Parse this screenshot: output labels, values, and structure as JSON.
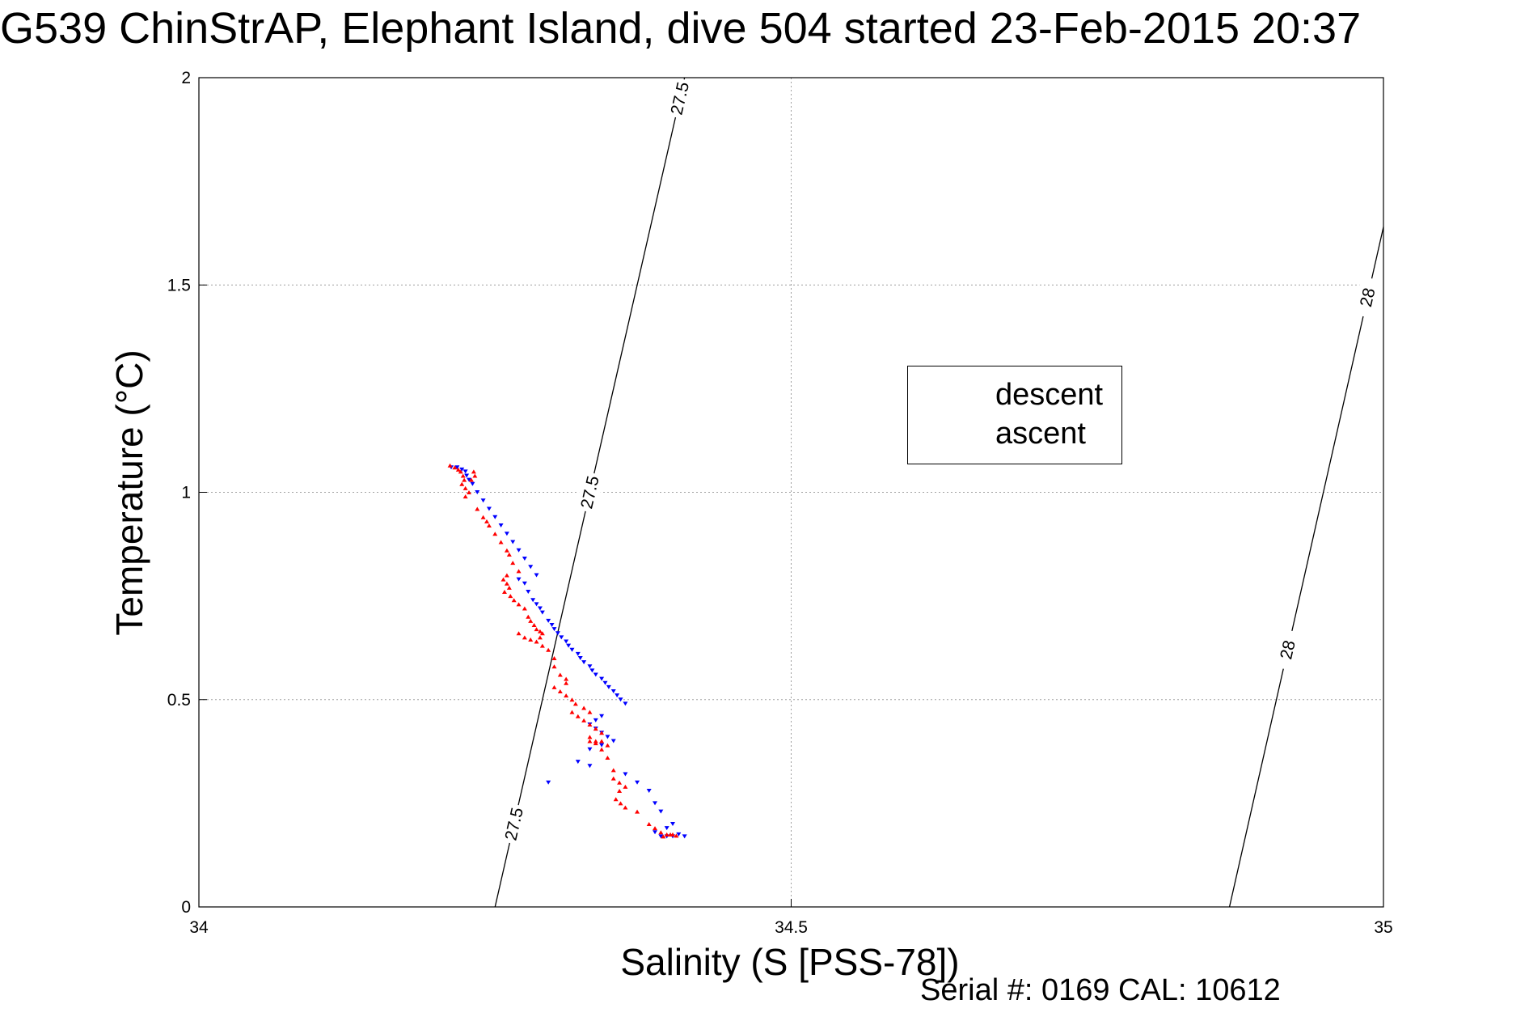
{
  "title": "G539 ChinStrAP, Elephant Island, dive 504 started 23-Feb-2015 20:37",
  "serial": "Serial #: 0169 CAL: 10612",
  "colors": {
    "descent": "#0000ff",
    "ascent": "#ff0000",
    "contour": "#000000",
    "grid": "#a0a0a0"
  },
  "legend": {
    "items": [
      {
        "label": "descent",
        "marker": "triangle-down",
        "color": "#0000ff"
      },
      {
        "label": "ascent",
        "marker": "triangle-up",
        "color": "#ff0000"
      }
    ],
    "placement": "center-right"
  },
  "chart_data": {
    "type": "scatter",
    "title": "G539 ChinStrAP, Elephant Island, dive 504 started 23-Feb-2015 20:37",
    "xlabel": "Salinity (S [PSS-78])",
    "ylabel": "Temperature (°C)",
    "xlim": [
      34,
      35
    ],
    "ylim": [
      0,
      2
    ],
    "xticks": [
      "34",
      "34.5",
      "35"
    ],
    "yticks": [
      "0",
      "0.5",
      "1",
      "1.5",
      "2"
    ],
    "grid": true,
    "contours": [
      {
        "label": "27.5",
        "line": [
          [
            34.25,
            0
          ],
          [
            34.41,
            2
          ]
        ],
        "label_at": [
          0.2,
          1.0,
          1.95
        ]
      },
      {
        "label": "28",
        "line": [
          [
            34.87,
            0
          ],
          [
            35,
            1.64
          ]
        ],
        "label_at": [
          0.62,
          1.47
        ]
      }
    ],
    "series": [
      {
        "name": "descent",
        "marker": "triangle-down",
        "color": "#0000ff",
        "points": [
          [
            34.213,
            1.06
          ],
          [
            34.218,
            1.06
          ],
          [
            34.222,
            1.055
          ],
          [
            34.225,
            1.05
          ],
          [
            34.226,
            1.04
          ],
          [
            34.228,
            1.03
          ],
          [
            34.231,
            1.02
          ],
          [
            34.235,
            1.0
          ],
          [
            34.24,
            0.98
          ],
          [
            34.245,
            0.96
          ],
          [
            34.25,
            0.94
          ],
          [
            34.255,
            0.92
          ],
          [
            34.26,
            0.9
          ],
          [
            34.265,
            0.88
          ],
          [
            34.27,
            0.86
          ],
          [
            34.275,
            0.84
          ],
          [
            34.28,
            0.82
          ],
          [
            34.285,
            0.8
          ],
          [
            34.27,
            0.79
          ],
          [
            34.275,
            0.78
          ],
          [
            34.278,
            0.76
          ],
          [
            34.282,
            0.74
          ],
          [
            34.285,
            0.73
          ],
          [
            34.288,
            0.72
          ],
          [
            34.29,
            0.71
          ],
          [
            34.295,
            0.69
          ],
          [
            34.298,
            0.68
          ],
          [
            34.3,
            0.67
          ],
          [
            34.303,
            0.66
          ],
          [
            34.306,
            0.65
          ],
          [
            34.31,
            0.64
          ],
          [
            34.312,
            0.63
          ],
          [
            34.315,
            0.62
          ],
          [
            34.32,
            0.61
          ],
          [
            34.322,
            0.6
          ],
          [
            34.325,
            0.59
          ],
          [
            34.33,
            0.58
          ],
          [
            34.332,
            0.57
          ],
          [
            34.335,
            0.56
          ],
          [
            34.34,
            0.55
          ],
          [
            34.343,
            0.54
          ],
          [
            34.346,
            0.53
          ],
          [
            34.35,
            0.52
          ],
          [
            34.353,
            0.51
          ],
          [
            34.356,
            0.5
          ],
          [
            34.36,
            0.49
          ],
          [
            34.34,
            0.46
          ],
          [
            34.335,
            0.45
          ],
          [
            34.33,
            0.44
          ],
          [
            34.335,
            0.43
          ],
          [
            34.34,
            0.42
          ],
          [
            34.345,
            0.41
          ],
          [
            34.35,
            0.4
          ],
          [
            34.34,
            0.39
          ],
          [
            34.33,
            0.38
          ],
          [
            34.295,
            0.3
          ],
          [
            34.32,
            0.35
          ],
          [
            34.33,
            0.34
          ],
          [
            34.36,
            0.32
          ],
          [
            34.37,
            0.3
          ],
          [
            34.38,
            0.28
          ],
          [
            34.385,
            0.25
          ],
          [
            34.39,
            0.23
          ],
          [
            34.4,
            0.2
          ],
          [
            34.395,
            0.19
          ],
          [
            34.385,
            0.18
          ],
          [
            34.39,
            0.17
          ],
          [
            34.395,
            0.17
          ],
          [
            34.4,
            0.17
          ],
          [
            34.405,
            0.175
          ],
          [
            34.41,
            0.17
          ]
        ]
      },
      {
        "name": "ascent",
        "marker": "triangle-up",
        "color": "#ff0000",
        "points": [
          [
            34.212,
            1.065
          ],
          [
            34.216,
            1.06
          ],
          [
            34.219,
            1.055
          ],
          [
            34.221,
            1.05
          ],
          [
            34.223,
            1.04
          ],
          [
            34.224,
            1.03
          ],
          [
            34.222,
            1.02
          ],
          [
            34.225,
            1.01
          ],
          [
            34.228,
            1.0
          ],
          [
            34.23,
            1.03
          ],
          [
            34.232,
            1.05
          ],
          [
            34.233,
            1.04
          ],
          [
            34.225,
            0.99
          ],
          [
            34.235,
            0.96
          ],
          [
            34.24,
            0.94
          ],
          [
            34.243,
            0.93
          ],
          [
            34.245,
            0.92
          ],
          [
            34.25,
            0.9
          ],
          [
            34.255,
            0.88
          ],
          [
            34.26,
            0.86
          ],
          [
            34.262,
            0.85
          ],
          [
            34.265,
            0.83
          ],
          [
            34.27,
            0.81
          ],
          [
            34.26,
            0.8
          ],
          [
            34.257,
            0.79
          ],
          [
            34.26,
            0.78
          ],
          [
            34.262,
            0.77
          ],
          [
            34.258,
            0.76
          ],
          [
            34.263,
            0.75
          ],
          [
            34.266,
            0.74
          ],
          [
            34.27,
            0.73
          ],
          [
            34.275,
            0.72
          ],
          [
            34.278,
            0.7
          ],
          [
            34.28,
            0.69
          ],
          [
            34.283,
            0.68
          ],
          [
            34.285,
            0.67
          ],
          [
            34.288,
            0.665
          ],
          [
            34.29,
            0.66
          ],
          [
            34.27,
            0.66
          ],
          [
            34.275,
            0.65
          ],
          [
            34.28,
            0.645
          ],
          [
            34.285,
            0.64
          ],
          [
            34.288,
            0.65
          ],
          [
            34.29,
            0.63
          ],
          [
            34.295,
            0.62
          ],
          [
            34.3,
            0.6
          ],
          [
            34.3,
            0.58
          ],
          [
            34.305,
            0.56
          ],
          [
            34.31,
            0.55
          ],
          [
            34.31,
            0.54
          ],
          [
            34.3,
            0.53
          ],
          [
            34.305,
            0.52
          ],
          [
            34.31,
            0.51
          ],
          [
            34.315,
            0.5
          ],
          [
            34.318,
            0.49
          ],
          [
            34.325,
            0.48
          ],
          [
            34.33,
            0.47
          ],
          [
            34.315,
            0.47
          ],
          [
            34.32,
            0.46
          ],
          [
            34.325,
            0.45
          ],
          [
            34.33,
            0.44
          ],
          [
            34.335,
            0.43
          ],
          [
            34.34,
            0.42
          ],
          [
            34.33,
            0.41
          ],
          [
            34.33,
            0.4
          ],
          [
            34.335,
            0.4
          ],
          [
            34.34,
            0.4
          ],
          [
            34.345,
            0.39
          ],
          [
            34.34,
            0.38
          ],
          [
            34.335,
            0.395
          ],
          [
            34.345,
            0.36
          ],
          [
            34.35,
            0.33
          ],
          [
            34.35,
            0.31
          ],
          [
            34.355,
            0.3
          ],
          [
            34.36,
            0.29
          ],
          [
            34.355,
            0.28
          ],
          [
            34.352,
            0.26
          ],
          [
            34.356,
            0.25
          ],
          [
            34.36,
            0.24
          ],
          [
            34.37,
            0.23
          ],
          [
            34.38,
            0.2
          ],
          [
            34.385,
            0.19
          ],
          [
            34.39,
            0.18
          ],
          [
            34.395,
            0.175
          ],
          [
            34.398,
            0.175
          ],
          [
            34.4,
            0.175
          ],
          [
            34.403,
            0.172
          ],
          [
            34.392,
            0.17
          ]
        ]
      }
    ]
  }
}
